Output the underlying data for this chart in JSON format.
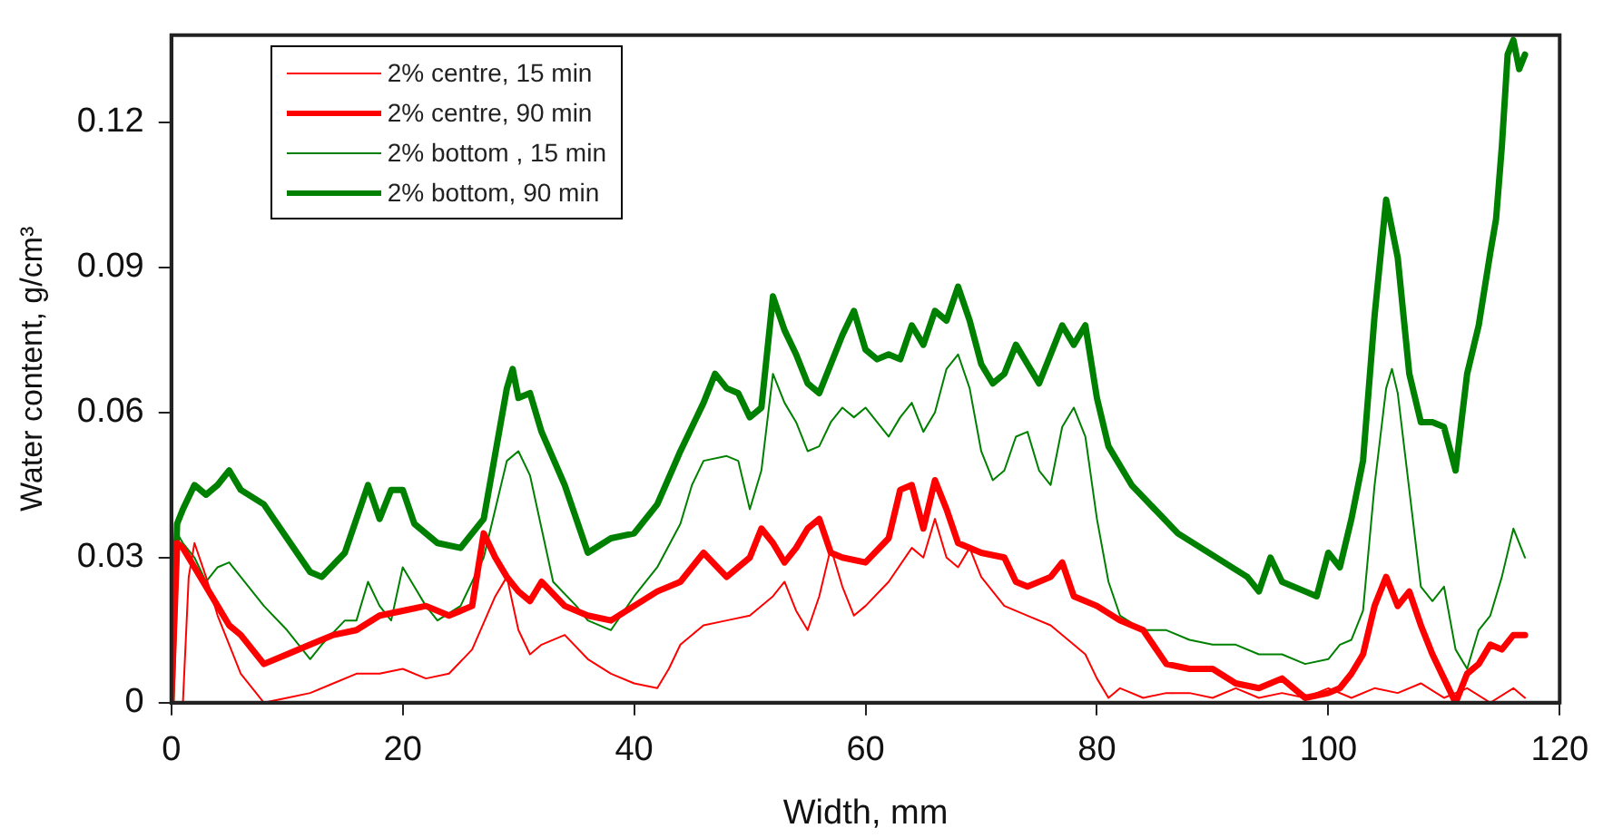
{
  "chart_data": {
    "type": "line",
    "xlabel": "Width, mm",
    "ylabel": "Water content, g/cm³",
    "xlim": [
      0,
      120
    ],
    "xticks": [
      0,
      20,
      40,
      60,
      80,
      100,
      120
    ],
    "ylim": [
      0,
      0.138
    ],
    "yticks": [
      0,
      0.03,
      0.06,
      0.09,
      0.12
    ],
    "grid": false,
    "legend": "top left",
    "marker": "none",
    "line_style": "solid",
    "series": [
      {
        "name": "2% centre, 15 min",
        "color": "#ff0000",
        "x": [
          0,
          1,
          1.5,
          2,
          3,
          4,
          5,
          6,
          7,
          8,
          10,
          12,
          14,
          16,
          18,
          20,
          22,
          24,
          26,
          28,
          29,
          30,
          31,
          32,
          34,
          36,
          38,
          40,
          42,
          43,
          44,
          46,
          48,
          50,
          52,
          53,
          54,
          55,
          56,
          57,
          58,
          59,
          60,
          62,
          64,
          65,
          66,
          67,
          68,
          69,
          70,
          72,
          74,
          76,
          78,
          79,
          80,
          81,
          82,
          84,
          86,
          88,
          90,
          92,
          94,
          96,
          98,
          100,
          102,
          104,
          106,
          108,
          110,
          112,
          114,
          116,
          117
        ],
        "values": [
          0,
          0,
          0.026,
          0.033,
          0.026,
          0.018,
          0.012,
          0.006,
          0.003,
          0,
          0.001,
          0.002,
          0.004,
          0.006,
          0.006,
          0.007,
          0.005,
          0.006,
          0.011,
          0.022,
          0.026,
          0.015,
          0.01,
          0.012,
          0.014,
          0.009,
          0.006,
          0.004,
          0.003,
          0.007,
          0.012,
          0.016,
          0.017,
          0.018,
          0.022,
          0.025,
          0.019,
          0.015,
          0.022,
          0.032,
          0.024,
          0.018,
          0.02,
          0.025,
          0.032,
          0.03,
          0.038,
          0.03,
          0.028,
          0.032,
          0.026,
          0.02,
          0.018,
          0.016,
          0.012,
          0.01,
          0.005,
          0.001,
          0.003,
          0.001,
          0.002,
          0.002,
          0.001,
          0.003,
          0.001,
          0.002,
          0.001,
          0.003,
          0.001,
          0.003,
          0.002,
          0.004,
          0.001,
          0.003,
          0,
          0.003,
          0.001
        ]
      },
      {
        "name": "2% centre, 90 min",
        "color": "#ff0000",
        "x": [
          0,
          0.5,
          1,
          2,
          3,
          4,
          5,
          6,
          7,
          8,
          10,
          12,
          14,
          16,
          18,
          20,
          22,
          24,
          26,
          27,
          28,
          29,
          30,
          31,
          32,
          34,
          36,
          38,
          40,
          42,
          44,
          46,
          48,
          50,
          51,
          52,
          53,
          54,
          55,
          56,
          57,
          58,
          60,
          62,
          63,
          64,
          65,
          66,
          67,
          68,
          70,
          72,
          73,
          74,
          76,
          77,
          78,
          80,
          82,
          84,
          86,
          88,
          90,
          92,
          94,
          96,
          98,
          100,
          101,
          102,
          103,
          104,
          105,
          106,
          107,
          108,
          109,
          110,
          111,
          112,
          113,
          114,
          115,
          116,
          117
        ],
        "values": [
          0,
          0.033,
          0.032,
          0.028,
          0.024,
          0.02,
          0.016,
          0.014,
          0.011,
          0.008,
          0.01,
          0.012,
          0.014,
          0.015,
          0.018,
          0.019,
          0.02,
          0.018,
          0.02,
          0.035,
          0.03,
          0.026,
          0.023,
          0.021,
          0.025,
          0.02,
          0.018,
          0.017,
          0.02,
          0.023,
          0.025,
          0.031,
          0.026,
          0.03,
          0.036,
          0.033,
          0.029,
          0.032,
          0.036,
          0.038,
          0.031,
          0.03,
          0.029,
          0.034,
          0.044,
          0.045,
          0.036,
          0.046,
          0.04,
          0.033,
          0.031,
          0.03,
          0.025,
          0.024,
          0.026,
          0.029,
          0.022,
          0.02,
          0.017,
          0.015,
          0.008,
          0.007,
          0.007,
          0.004,
          0.003,
          0.005,
          0.001,
          0.002,
          0.003,
          0.006,
          0.01,
          0.02,
          0.026,
          0.02,
          0.023,
          0.016,
          0.01,
          0.005,
          0,
          0.006,
          0.008,
          0.012,
          0.011,
          0.014,
          0.014
        ]
      },
      {
        "name": "2% bottom , 15 min",
        "color": "#008000",
        "x": [
          0,
          0.5,
          1,
          2,
          3,
          4,
          5,
          6,
          8,
          10,
          12,
          13,
          15,
          16,
          17,
          18,
          19,
          20,
          21,
          22,
          23,
          25,
          27,
          28,
          29,
          30,
          31,
          32,
          33,
          35,
          36,
          38,
          40,
          42,
          44,
          45,
          46,
          48,
          49,
          50,
          51,
          52,
          53,
          54,
          55,
          56,
          57,
          58,
          59,
          60,
          61,
          62,
          63,
          64,
          65,
          66,
          67,
          68,
          69,
          70,
          71,
          72,
          73,
          74,
          75,
          76,
          77,
          78,
          79,
          80,
          81,
          82,
          84,
          86,
          88,
          90,
          92,
          94,
          96,
          98,
          100,
          101,
          102,
          103,
          104,
          105,
          105.5,
          106,
          107,
          108,
          109,
          110,
          111,
          112,
          113,
          114,
          115,
          116,
          117
        ],
        "values": [
          0,
          0.035,
          0.033,
          0.03,
          0.025,
          0.028,
          0.029,
          0.026,
          0.02,
          0.015,
          0.009,
          0.012,
          0.017,
          0.017,
          0.025,
          0.02,
          0.017,
          0.028,
          0.024,
          0.02,
          0.017,
          0.02,
          0.03,
          0.04,
          0.05,
          0.052,
          0.047,
          0.036,
          0.025,
          0.02,
          0.017,
          0.015,
          0.022,
          0.028,
          0.037,
          0.045,
          0.05,
          0.051,
          0.05,
          0.04,
          0.048,
          0.068,
          0.062,
          0.058,
          0.052,
          0.053,
          0.058,
          0.061,
          0.059,
          0.061,
          0.058,
          0.055,
          0.059,
          0.062,
          0.056,
          0.06,
          0.069,
          0.072,
          0.065,
          0.052,
          0.046,
          0.048,
          0.055,
          0.056,
          0.048,
          0.045,
          0.057,
          0.061,
          0.055,
          0.038,
          0.025,
          0.018,
          0.015,
          0.015,
          0.013,
          0.012,
          0.012,
          0.01,
          0.01,
          0.008,
          0.009,
          0.012,
          0.013,
          0.019,
          0.045,
          0.065,
          0.069,
          0.064,
          0.044,
          0.024,
          0.021,
          0.024,
          0.011,
          0.007,
          0.015,
          0.018,
          0.026,
          0.036,
          0.03
        ]
      },
      {
        "name": "2% bottom, 90 min",
        "color": "#008000",
        "x": [
          0,
          0.5,
          1,
          2,
          3,
          4,
          5,
          6,
          8,
          10,
          12,
          13,
          15,
          17,
          18,
          19,
          20,
          21,
          23,
          25,
          27,
          29,
          29.5,
          30,
          31,
          32,
          34,
          36,
          38,
          40,
          42,
          44,
          46,
          47,
          48,
          49,
          50,
          51,
          52,
          53,
          54,
          55,
          56,
          58,
          59,
          60,
          61,
          62,
          63,
          64,
          65,
          66,
          67,
          68,
          69,
          70,
          71,
          72,
          73,
          74,
          75,
          76,
          77,
          78,
          79,
          80,
          81,
          83,
          85,
          87,
          89,
          91,
          93,
          94,
          95,
          96,
          98,
          99,
          100,
          101,
          102,
          103,
          104,
          105,
          106,
          107,
          108,
          109,
          110,
          111,
          112,
          113,
          114,
          114.5,
          115,
          115.5,
          116,
          116.5,
          117
        ],
        "values": [
          0,
          0.037,
          0.04,
          0.045,
          0.043,
          0.045,
          0.048,
          0.044,
          0.041,
          0.034,
          0.027,
          0.026,
          0.031,
          0.045,
          0.038,
          0.044,
          0.044,
          0.037,
          0.033,
          0.032,
          0.038,
          0.065,
          0.069,
          0.063,
          0.064,
          0.056,
          0.045,
          0.031,
          0.034,
          0.035,
          0.041,
          0.052,
          0.062,
          0.068,
          0.065,
          0.064,
          0.059,
          0.061,
          0.084,
          0.077,
          0.072,
          0.066,
          0.064,
          0.076,
          0.081,
          0.073,
          0.071,
          0.072,
          0.071,
          0.078,
          0.074,
          0.081,
          0.079,
          0.086,
          0.079,
          0.07,
          0.066,
          0.068,
          0.074,
          0.07,
          0.066,
          0.072,
          0.078,
          0.074,
          0.078,
          0.063,
          0.053,
          0.045,
          0.04,
          0.035,
          0.032,
          0.029,
          0.026,
          0.023,
          0.03,
          0.025,
          0.023,
          0.022,
          0.031,
          0.028,
          0.038,
          0.05,
          0.08,
          0.104,
          0.092,
          0.068,
          0.058,
          0.058,
          0.057,
          0.048,
          0.068,
          0.078,
          0.093,
          0.1,
          0.115,
          0.134,
          0.137,
          0.131,
          0.134
        ]
      }
    ]
  }
}
